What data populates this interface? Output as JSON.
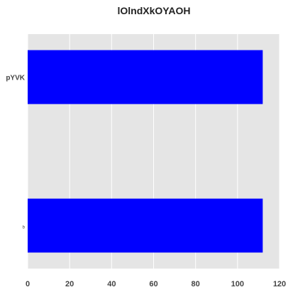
{
  "chart_data": {
    "type": "bar",
    "orientation": "horizontal",
    "title": "lOlndXkOYAOH",
    "xlabel": "",
    "ylabel": "",
    "categories": [
      "pYVK",
      "b"
    ],
    "values": [
      112,
      112
    ],
    "xlim": [
      0,
      120
    ],
    "xticks": [
      0,
      20,
      40,
      60,
      80,
      100,
      120
    ],
    "grid": true,
    "bar_color": "#0000ff",
    "background_color": "#e5e5e5",
    "grid_color": "#ffffff"
  }
}
